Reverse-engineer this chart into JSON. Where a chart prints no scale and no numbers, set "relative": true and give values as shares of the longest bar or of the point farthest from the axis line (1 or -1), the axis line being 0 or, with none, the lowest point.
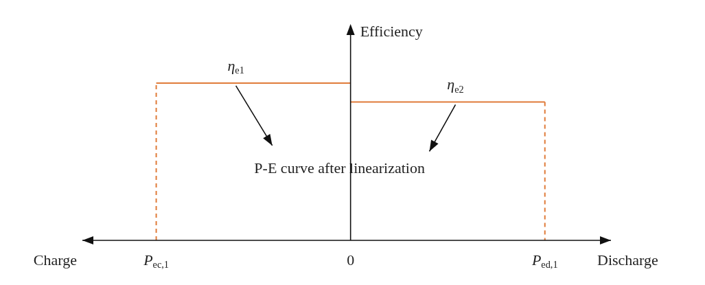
{
  "chart_data": {
    "type": "line",
    "relative": true,
    "ylabel": "Efficiency",
    "marker": "none",
    "xlim": [
      -1.38,
      1.34
    ],
    "xticks": [
      {
        "value": -1,
        "label": "P$_{ec,1}$"
      },
      0,
      {
        "value": 1,
        "label": "P$_{ed,1}$"
      }
    ],
    "series": [
      {
        "color": "#e07b39",
        "line_style": "dashed",
        "x": [
          -1,
          -1
        ],
        "values": [
          0,
          1
        ]
      },
      {
        "color": "#e07b39",
        "line_style": "solid",
        "x": [
          -1,
          0
        ],
        "values": [
          1,
          1
        ]
      },
      {
        "color": "#e07b39",
        "line_style": "solid",
        "x": [
          0,
          1
        ],
        "values": [
          0.88,
          0.88
        ]
      },
      {
        "color": "#e07b39",
        "line_style": "dashed",
        "x": [
          1,
          1
        ],
        "values": [
          0.88,
          0
        ]
      }
    ],
    "annotations": [
      {
        "text": "η$_{e1}$",
        "x": -0.59,
        "y": 1
      },
      {
        "text": "η$_{e2}$",
        "x": 0.54,
        "y": 0.88
      },
      "Charge",
      "P-E curve after linearization",
      "Discharge"
    ]
  }
}
